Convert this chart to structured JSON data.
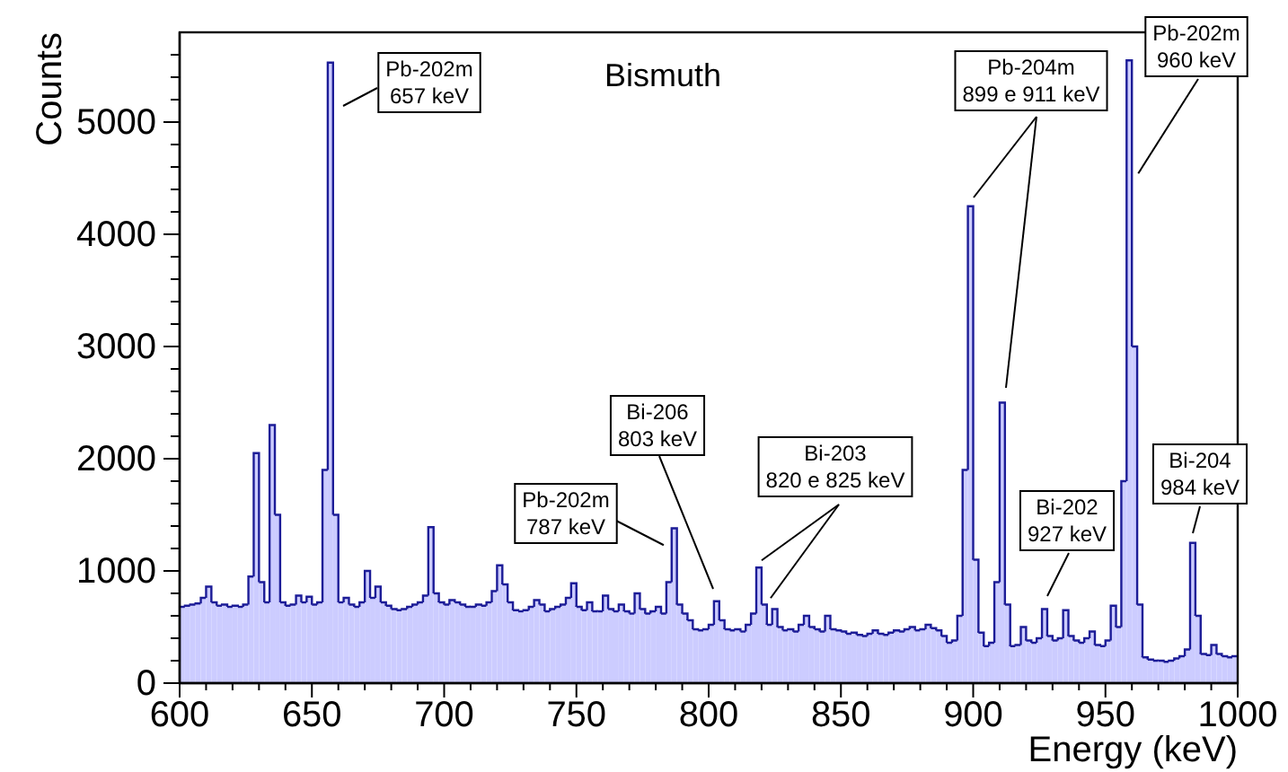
{
  "chart_data": {
    "type": "histogram",
    "title": "Bismuth",
    "xlabel": "Energy (keV)",
    "ylabel": "Counts",
    "color": "#ccccff",
    "xlim": [
      600,
      1000
    ],
    "xticks": [
      600,
      650,
      700,
      750,
      800,
      850,
      900,
      950,
      1000
    ],
    "ylim": [
      0,
      5800
    ],
    "yticks": [
      0,
      1000,
      2000,
      3000,
      4000,
      5000
    ],
    "grid": false,
    "bins": [
      600,
      602,
      604,
      606,
      608,
      610,
      612,
      614,
      616,
      618,
      620,
      622,
      624,
      626,
      628,
      630,
      632,
      634,
      636,
      638,
      640,
      642,
      644,
      646,
      648,
      650,
      652,
      654,
      656,
      658,
      660,
      662,
      664,
      666,
      668,
      670,
      672,
      674,
      676,
      678,
      680,
      682,
      684,
      686,
      688,
      690,
      692,
      694,
      696,
      698,
      700,
      702,
      704,
      706,
      708,
      710,
      712,
      714,
      716,
      718,
      720,
      722,
      724,
      726,
      728,
      730,
      732,
      734,
      736,
      738,
      740,
      742,
      744,
      746,
      748,
      750,
      752,
      754,
      756,
      758,
      760,
      762,
      764,
      766,
      768,
      770,
      772,
      774,
      776,
      778,
      780,
      782,
      784,
      786,
      788,
      790,
      792,
      794,
      796,
      798,
      800,
      802,
      804,
      806,
      808,
      810,
      812,
      814,
      816,
      818,
      820,
      822,
      824,
      826,
      828,
      830,
      832,
      834,
      836,
      838,
      840,
      842,
      844,
      846,
      848,
      850,
      852,
      854,
      856,
      858,
      860,
      862,
      864,
      866,
      868,
      870,
      872,
      874,
      876,
      878,
      880,
      882,
      884,
      886,
      888,
      890,
      892,
      894,
      896,
      898,
      900,
      902,
      904,
      906,
      908,
      910,
      912,
      914,
      916,
      918,
      920,
      922,
      924,
      926,
      928,
      930,
      932,
      934,
      936,
      938,
      940,
      942,
      944,
      946,
      948,
      950,
      952,
      954,
      956,
      958,
      960,
      962,
      964,
      966,
      968,
      970,
      972,
      974,
      976,
      978,
      980,
      982,
      984,
      986,
      988,
      990,
      992,
      994,
      996,
      998,
      1000
    ],
    "values": [
      680,
      690,
      700,
      710,
      760,
      860,
      720,
      690,
      700,
      680,
      690,
      680,
      700,
      950,
      2050,
      900,
      720,
      2300,
      1500,
      720,
      690,
      700,
      780,
      720,
      770,
      700,
      720,
      1900,
      5530,
      1500,
      720,
      760,
      700,
      680,
      720,
      1000,
      760,
      860,
      720,
      690,
      660,
      650,
      660,
      680,
      700,
      720,
      780,
      1390,
      800,
      720,
      700,
      740,
      720,
      700,
      680,
      680,
      700,
      690,
      720,
      820,
      1050,
      880,
      720,
      650,
      640,
      650,
      680,
      740,
      700,
      640,
      660,
      680,
      700,
      760,
      890,
      680,
      650,
      720,
      640,
      640,
      780,
      660,
      640,
      700,
      640,
      620,
      800,
      660,
      620,
      640,
      680,
      620,
      900,
      1380,
      700,
      620,
      560,
      480,
      470,
      480,
      520,
      730,
      560,
      480,
      470,
      480,
      460,
      520,
      620,
      1030,
      700,
      520,
      660,
      500,
      470,
      480,
      460,
      520,
      600,
      500,
      480,
      460,
      600,
      480,
      470,
      460,
      440,
      450,
      430,
      420,
      440,
      470,
      440,
      430,
      450,
      470,
      460,
      480,
      500,
      470,
      480,
      520,
      490,
      470,
      420,
      360,
      380,
      600,
      1900,
      4250,
      1100,
      450,
      330,
      360,
      900,
      2500,
      700,
      330,
      340,
      500,
      380,
      360,
      400,
      660,
      420,
      380,
      400,
      650,
      420,
      380,
      360,
      400,
      460,
      340,
      330,
      380,
      690,
      500,
      1800,
      5550,
      3000,
      700,
      230,
      210,
      200,
      200,
      190,
      200,
      220,
      240,
      300,
      1250,
      600,
      260,
      250,
      340,
      260,
      240,
      230,
      240
    ],
    "annotations": [
      "Pb-202m\n657 keV",
      {
        "text": "Pb-202m\n787 keV",
        "x": 783,
        "y": 1230
      },
      "Bi-206\n803 keV",
      {
        "text": "Bi-203\n820 e 825 keV",
        "x": 819,
        "y": 1030
      },
      "Pb-204m\n899 e 911 keV",
      {
        "text": "Pb-202m\n960 keV",
        "x": 959,
        "y": 5550
      },
      "Bi-202\n927 keV",
      "Bi-204\n984 keV"
    ]
  }
}
